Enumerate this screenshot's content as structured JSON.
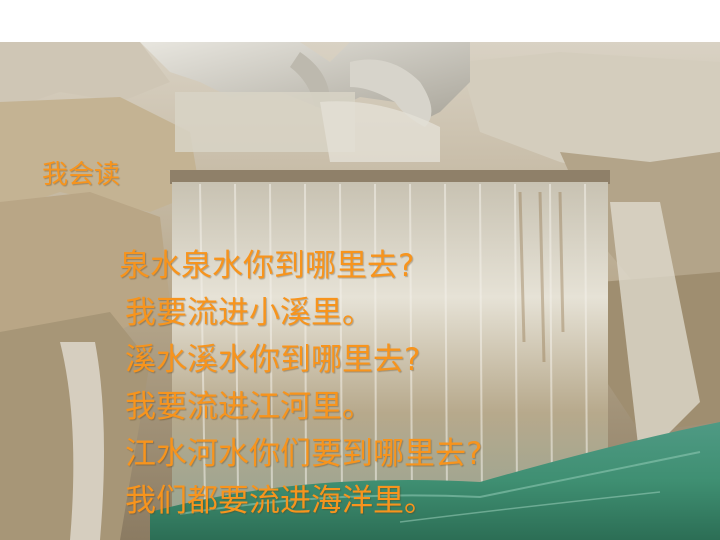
{
  "slide": {
    "heading": "我会读",
    "lines": [
      "泉水泉水你到哪里去?",
      "我要流进小溪里。",
      "溪水溪水你到哪里去?",
      "我要流进江河里。",
      "江水河水你们要到哪里去?",
      "我们都要流进海洋里。"
    ],
    "text_color": "#f7941d",
    "background_image": "fountain-waterfall-photo"
  }
}
